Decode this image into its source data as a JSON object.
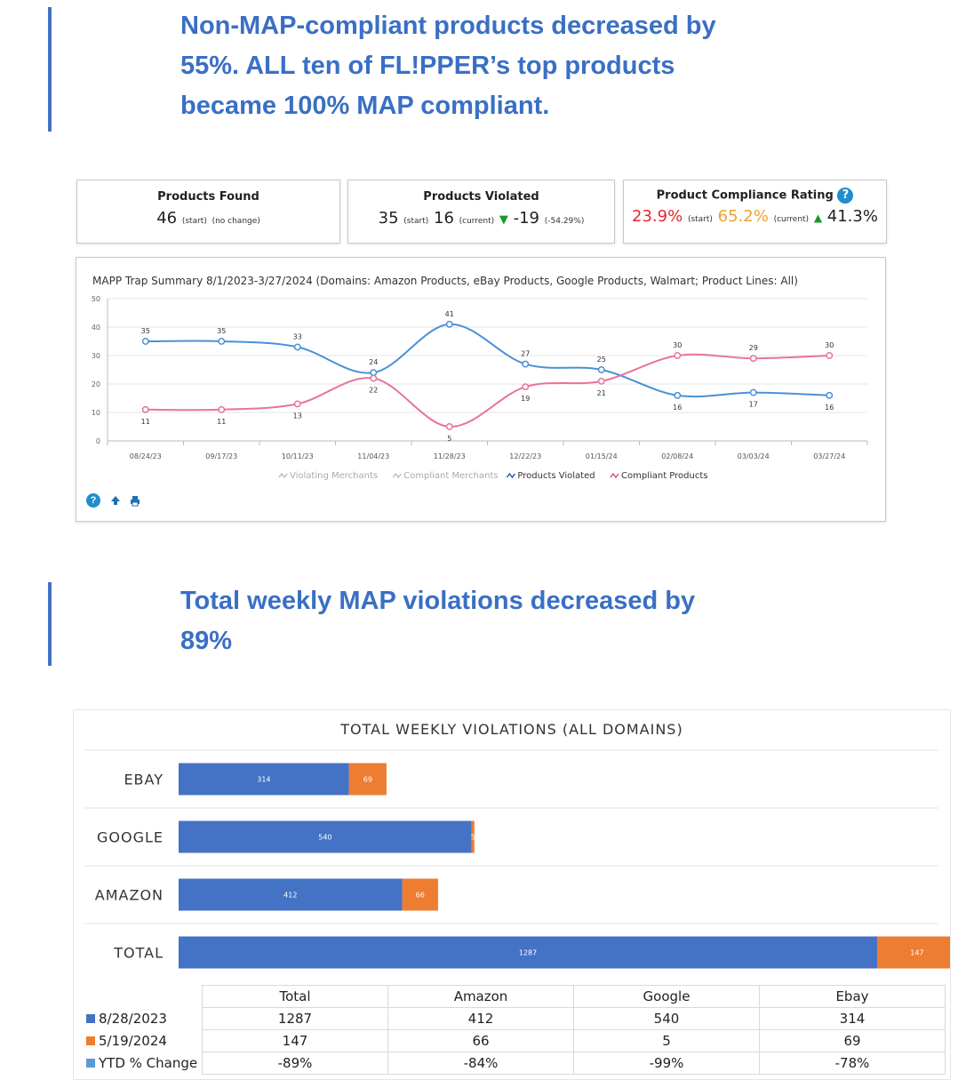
{
  "section1": {
    "headline": "Non-MAP-compliant products decreased by\n55%. ALL ten of FL!PPER’s top products\nbecame 100% MAP compliant."
  },
  "kpis": {
    "found": {
      "title": "Products Found",
      "value": "46",
      "note1": "(start)",
      "note2": "(no change)"
    },
    "violated": {
      "title": "Products Violated",
      "start": "35",
      "start_note": "(start)",
      "current": "16",
      "current_note": "(current)",
      "change": "-19",
      "change_pct": "(-54.29%)"
    },
    "rating": {
      "title": "Product Compliance Rating",
      "start": "23.9%",
      "start_note": "(start)",
      "current": "65.2%",
      "current_note": "(current)",
      "change": "41.3%",
      "help": "?"
    },
    "colors": {
      "red": "#e8262b",
      "orange": "#f0a030",
      "green": "#1a9a2a"
    }
  },
  "chart_data": [
    {
      "type": "line",
      "title": "MAPP Trap Summary 8/1/2023-3/27/2024 (Domains: Amazon Products, eBay Products, Google Products, Walmart; Product Lines: All)",
      "categories": [
        "08/24/23",
        "09/17/23",
        "10/11/23",
        "11/04/23",
        "11/28/23",
        "12/22/23",
        "01/15/24",
        "02/08/24",
        "03/03/24",
        "03/27/24"
      ],
      "series": [
        {
          "name": "Products Violated",
          "color": "#4a90d9",
          "values": [
            35,
            35,
            33,
            24,
            41,
            27,
            25,
            16,
            17,
            16
          ]
        },
        {
          "name": "Compliant Products",
          "color": "#e8739b",
          "values": [
            11,
            11,
            13,
            22,
            5,
            19,
            21,
            30,
            29,
            30
          ]
        }
      ],
      "legend": [
        {
          "label": "Violating Merchants",
          "active": false
        },
        {
          "label": "Compliant Merchants",
          "active": false
        },
        {
          "label": "Products Violated",
          "active": true
        },
        {
          "label": "Compliant Products",
          "active": true
        }
      ],
      "legend_position": "bottom",
      "ylim": [
        0,
        50
      ],
      "yticks": [
        "0",
        "10",
        "20",
        "30",
        "40",
        "50"
      ],
      "grid": true
    },
    {
      "type": "bar",
      "title": "TOTAL WEEKLY VIOLATIONS (ALL DOMAINS)",
      "orientation": "horizontal",
      "stacked": true,
      "categories": [
        "EBAY",
        "GOOGLE",
        "AMAZON",
        "TOTAL"
      ],
      "series": [
        {
          "name": "8/28/2023",
          "color": "#4472c4",
          "values": [
            314,
            540,
            412,
            1287
          ]
        },
        {
          "name": "5/19/2024",
          "color": "#ed7d31",
          "values": [
            69,
            5,
            66,
            147
          ]
        }
      ],
      "xlim": [
        0,
        1400
      ]
    }
  ],
  "chart_toolbar": {
    "help": "?"
  },
  "section2": {
    "headline": "Total weekly MAP violations decreased by\n89%"
  },
  "summary_table": {
    "columns": [
      "Total",
      "Amazon",
      "Google",
      "Ebay"
    ],
    "rows": [
      {
        "label": "8/28/2023",
        "color": "#4472c4",
        "cells": [
          "1287",
          "412",
          "540",
          "314"
        ]
      },
      {
        "label": "5/19/2024",
        "color": "#ed7d31",
        "cells": [
          "147",
          "66",
          "5",
          "69"
        ]
      },
      {
        "label": "YTD % Change",
        "color": "#5b9bd5",
        "cells": [
          "-89%",
          "-84%",
          "-99%",
          "-78%"
        ]
      }
    ]
  }
}
